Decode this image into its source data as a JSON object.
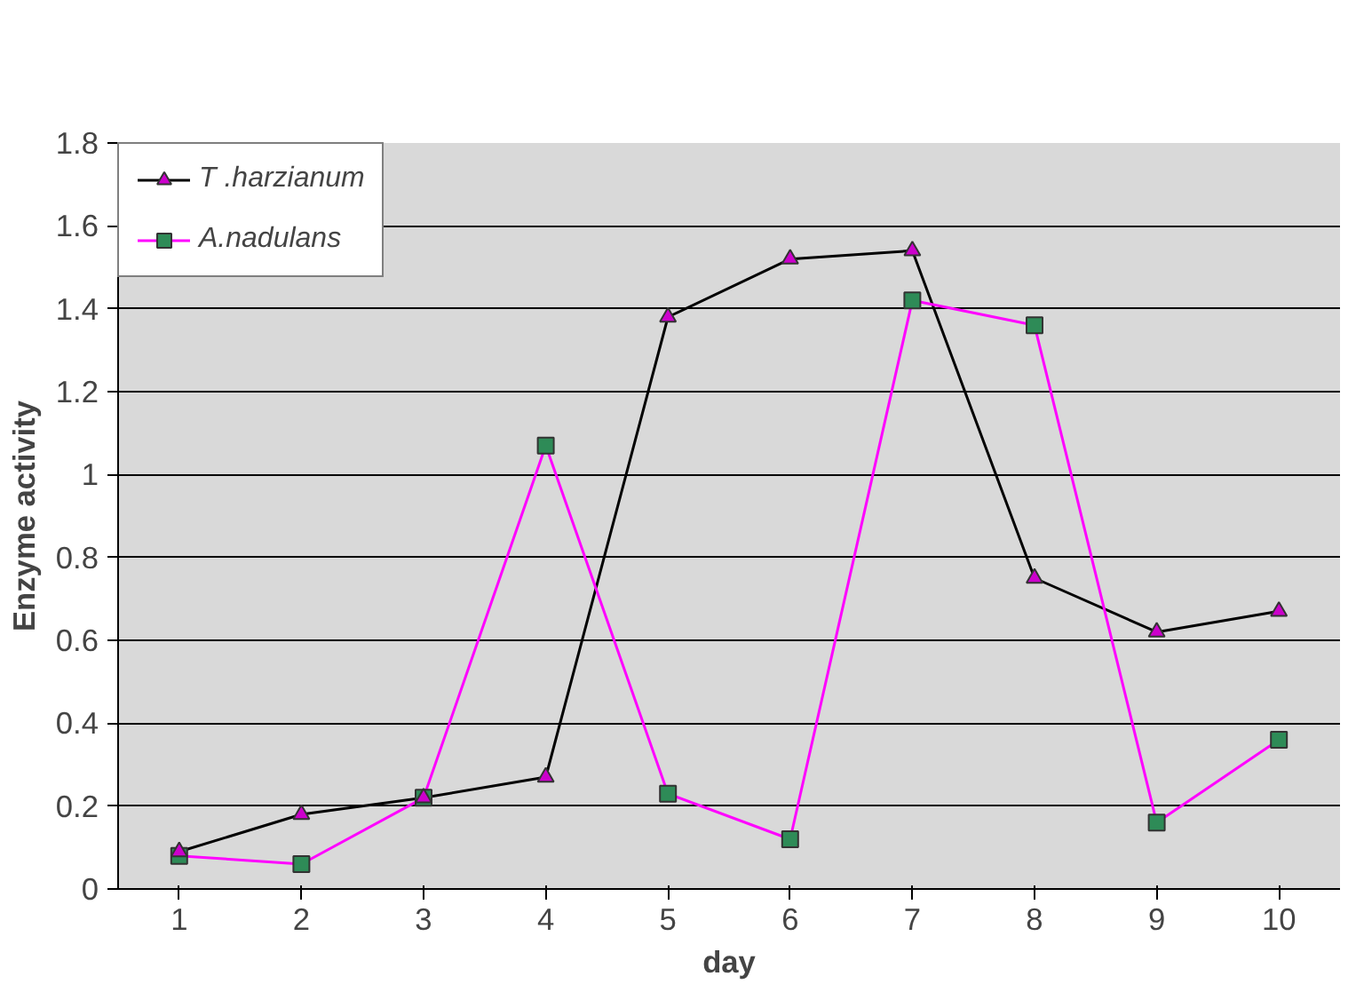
{
  "chart_data": {
    "type": "line",
    "xlabel": "day",
    "ylabel": "Enzyme activity",
    "categories": [
      "1",
      "2",
      "3",
      "4",
      "5",
      "6",
      "7",
      "8",
      "9",
      "10"
    ],
    "ylim": [
      0,
      1.8
    ],
    "yticks": [
      0,
      0.2,
      0.4,
      0.6,
      0.8,
      1,
      1.2,
      1.4,
      1.6,
      1.8
    ],
    "grid": "y",
    "legend": "top left",
    "series": [
      {
        "name": "T .harzianum",
        "color": "#000000",
        "colors": [
          "#cc00cc",
          "#cc00cc",
          "#cc00cc",
          "#cc00cc",
          "#cc00cc",
          "#cc00cc",
          "#cc00cc",
          "#cc00cc",
          "#cc00cc",
          "#cc00cc"
        ],
        "marker": "triangle",
        "values": [
          0.09,
          0.18,
          0.22,
          0.27,
          1.38,
          1.52,
          1.54,
          0.75,
          0.62,
          0.67
        ]
      },
      {
        "name": "A.nadulans",
        "color": "#ff00ff",
        "colors": [
          "#2e8b57",
          "#2e8b57",
          "#2e8b57",
          "#2e8b57",
          "#2e8b57",
          "#2e8b57",
          "#2e8b57",
          "#2e8b57",
          "#2e8b57",
          "#2e8b57"
        ],
        "marker": "square",
        "values": [
          0.08,
          0.06,
          0.22,
          1.07,
          0.23,
          0.12,
          1.42,
          1.36,
          0.16,
          0.36
        ]
      }
    ]
  }
}
